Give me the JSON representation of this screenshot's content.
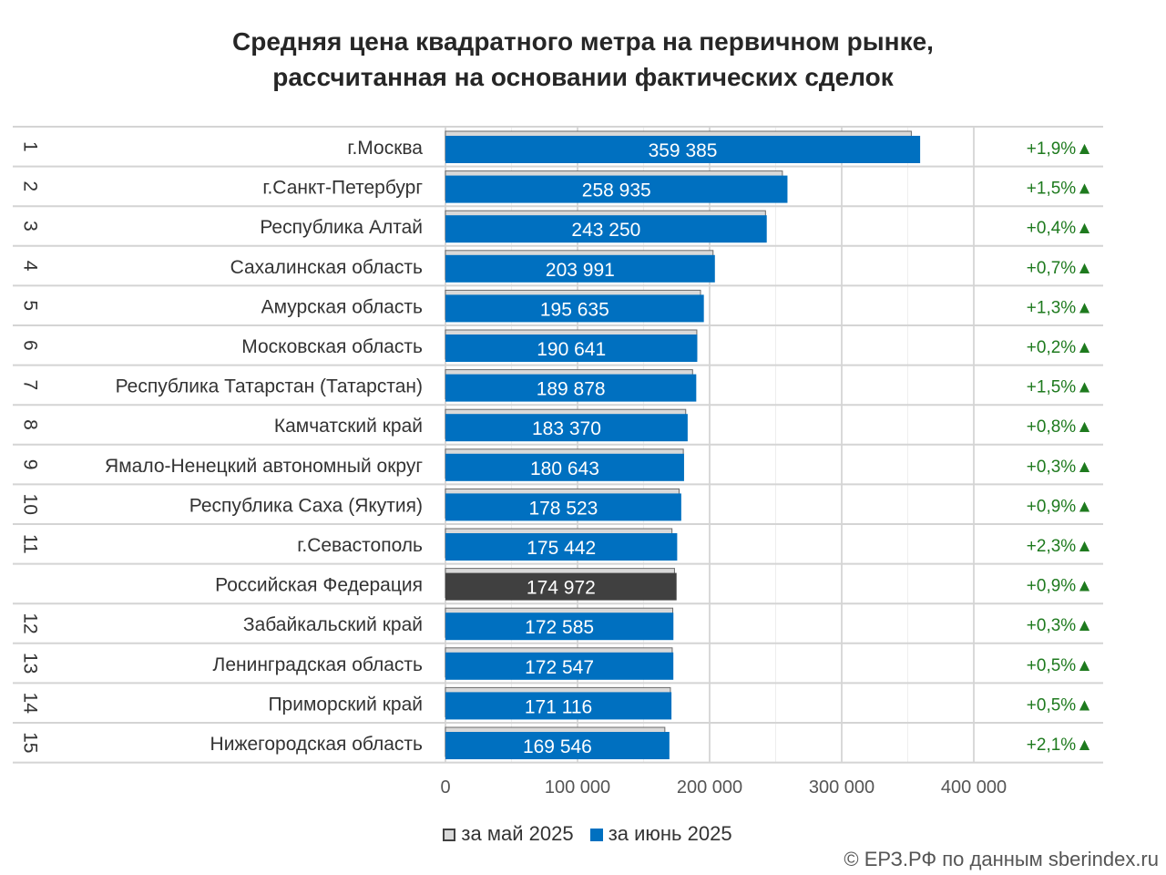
{
  "colors": {
    "june": "#0070c0",
    "may": "#d9d9d9",
    "highlight": "#404040",
    "change": "#1e7a1e"
  },
  "chart_data": {
    "type": "bar",
    "orientation": "horizontal",
    "title_lines": [
      "Средняя цена квадратного метра на первичном рынке,",
      "рассчитанная на основании фактических сделок"
    ],
    "xlim": [
      0,
      400000
    ],
    "xticks": [
      0,
      100000,
      200000,
      300000,
      400000
    ],
    "xtick_labels": [
      "0",
      "100 000",
      "200 000",
      "300 000",
      "400 000"
    ],
    "grid": true,
    "legend_position": "bottom",
    "series": [
      {
        "name": "за май 2025"
      },
      {
        "name": "за июнь 2025"
      }
    ],
    "rows": [
      {
        "rank": "1",
        "name": "г.Москва",
        "may": 352700,
        "june": 359385,
        "june_label": "359 385",
        "change": "+1,9%▲"
      },
      {
        "rank": "2",
        "name": "г.Санкт-Петербург",
        "may": 255100,
        "june": 258935,
        "june_label": "258 935",
        "change": "+1,5%▲"
      },
      {
        "rank": "3",
        "name": "Республика Алтай",
        "may": 242300,
        "june": 243250,
        "june_label": "243 250",
        "change": "+0,4%▲"
      },
      {
        "rank": "4",
        "name": "Сахалинская область",
        "may": 202600,
        "june": 203991,
        "june_label": "203 991",
        "change": "+0,7%▲"
      },
      {
        "rank": "5",
        "name": "Амурская область",
        "may": 193100,
        "june": 195635,
        "june_label": "195 635",
        "change": "+1,3%▲"
      },
      {
        "rank": "6",
        "name": "Московская область",
        "may": 190300,
        "june": 190641,
        "june_label": "190 641",
        "change": "+0,2%▲"
      },
      {
        "rank": "7",
        "name": "Республика Татарстан (Татарстан)",
        "may": 187100,
        "june": 189878,
        "june_label": "189 878",
        "change": "+1,5%▲"
      },
      {
        "rank": "8",
        "name": "Камчатский край",
        "may": 181900,
        "june": 183370,
        "june_label": "183 370",
        "change": "+0,8%▲"
      },
      {
        "rank": "9",
        "name": "Ямало-Ненецкий автономный округ",
        "may": 180100,
        "june": 180643,
        "june_label": "180 643",
        "change": "+0,3%▲"
      },
      {
        "rank": "10",
        "name": "Республика Саха (Якутия)",
        "may": 176900,
        "june": 178523,
        "june_label": "178 523",
        "change": "+0,9%▲"
      },
      {
        "rank": "11",
        "name": "г.Севастополь",
        "may": 171500,
        "june": 175442,
        "june_label": "175 442",
        "change": "+2,3%▲"
      },
      {
        "rank": "",
        "name": "Российская Федерация",
        "may": 173400,
        "june": 174972,
        "june_label": "174 972",
        "change": "+0,9%▲",
        "highlight": true
      },
      {
        "rank": "12",
        "name": "Забайкальский край",
        "may": 172100,
        "june": 172585,
        "june_label": "172 585",
        "change": "+0,3%▲"
      },
      {
        "rank": "13",
        "name": "Ленинградская область",
        "may": 171700,
        "june": 172547,
        "june_label": "172 547",
        "change": "+0,5%▲"
      },
      {
        "rank": "14",
        "name": "Приморский край",
        "may": 170300,
        "june": 171116,
        "june_label": "171 116",
        "change": "+0,5%▲"
      },
      {
        "rank": "15",
        "name": "Нижегородская область",
        "may": 166100,
        "june": 169546,
        "june_label": "169 546",
        "change": "+2,1%▲"
      }
    ]
  },
  "source": "© ЕРЗ.РФ по данным sberindex.ru"
}
